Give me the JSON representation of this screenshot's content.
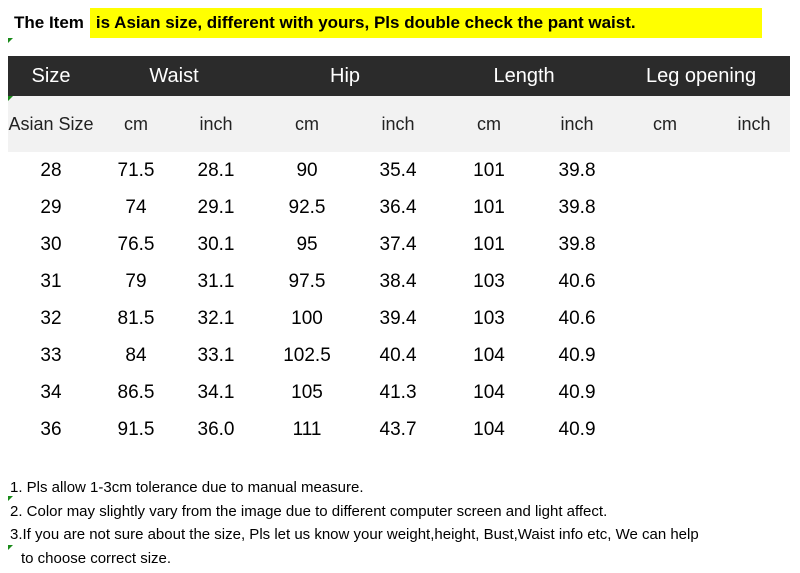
{
  "title": {
    "left": "The Item",
    "right": "is Asian size, different with yours, Pls double check the pant waist."
  },
  "table": {
    "headers": [
      "Size",
      "Waist",
      "Hip",
      "Length",
      "Leg opening"
    ],
    "asian_size_label": "Asian Size",
    "units": [
      "cm",
      "inch",
      "cm",
      "inch",
      "cm",
      "inch",
      "cm",
      "inch"
    ],
    "rows": [
      [
        "28",
        "71.5",
        "28.1",
        "90",
        "35.4",
        "101",
        "39.8",
        "",
        ""
      ],
      [
        "29",
        "74",
        "29.1",
        "92.5",
        "36.4",
        "101",
        "39.8",
        "",
        ""
      ],
      [
        "30",
        "76.5",
        "30.1",
        "95",
        "37.4",
        "101",
        "39.8",
        "",
        ""
      ],
      [
        "31",
        "79",
        "31.1",
        "97.5",
        "38.4",
        "103",
        "40.6",
        "",
        ""
      ],
      [
        "32",
        "81.5",
        "32.1",
        "100",
        "39.4",
        "103",
        "40.6",
        "",
        ""
      ],
      [
        "33",
        "84",
        "33.1",
        "102.5",
        "40.4",
        "104",
        "40.9",
        "",
        ""
      ],
      [
        "34",
        "86.5",
        "34.1",
        "105",
        "41.3",
        "104",
        "40.9",
        "",
        ""
      ],
      [
        "36",
        "91.5",
        "36.0",
        "111",
        "43.7",
        "104",
        "40.9",
        "",
        ""
      ]
    ]
  },
  "notes": [
    "1. Pls allow 1-3cm tolerance due to manual measure.",
    "2. Color may slightly vary from the image due to different computer screen and light affect.",
    "3.If you are not sure about the size, Pls let us know your weight,height, Bust,Waist info etc, We can help",
    "to choose correct size."
  ],
  "colors": {
    "highlight": "#ffff00",
    "header_bg": "#2b2b2b",
    "unit_row_bg": "#f2f2f2"
  }
}
